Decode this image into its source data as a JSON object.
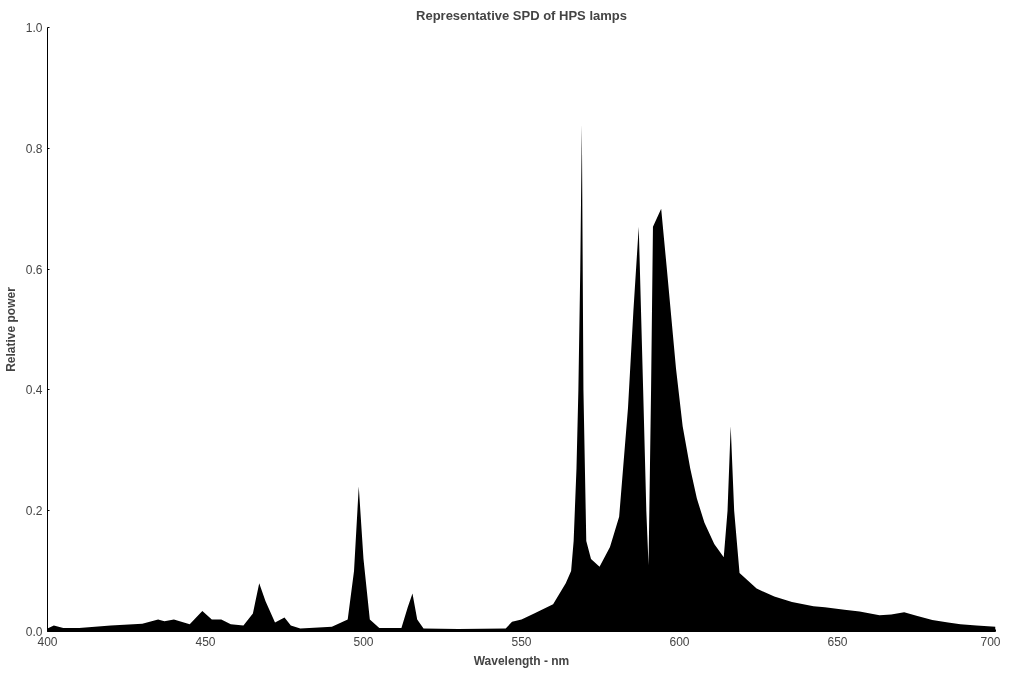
{
  "chart_data": {
    "type": "area",
    "title": "Representative SPD of HPS lamps",
    "xlabel": "Wavelength - nm",
    "ylabel": "Relative power",
    "x": [
      400,
      402,
      405,
      410,
      420,
      430,
      435,
      437,
      440,
      445,
      449,
      452,
      455,
      458,
      462,
      465,
      467,
      469,
      472,
      475,
      477,
      480,
      490,
      495,
      497,
      498.5,
      500,
      502,
      505,
      512,
      514,
      515.5,
      517,
      519,
      530,
      545,
      547,
      550,
      554,
      560,
      564,
      565.7,
      566.5,
      567.4,
      568,
      568.6,
      569.1,
      569.6,
      570.5,
      572,
      574.7,
      578,
      580.9,
      583.7,
      585.4,
      587.1,
      588.5,
      589.5,
      590.2,
      591,
      591.6,
      594.2,
      596,
      598.9,
      601,
      603.4,
      605.5,
      607.9,
      611,
      614,
      615.2,
      616.2,
      617.3,
      619,
      624.4,
      630,
      635.6,
      642.4,
      646,
      652.2,
      657,
      663.3,
      667,
      671.1,
      675,
      680,
      685,
      688.9,
      694,
      700
    ],
    "series": [
      {
        "color": "#000000",
        "values": [
          0.005,
          0.01,
          0.006,
          0.006,
          0.01,
          0.013,
          0.02,
          0.017,
          0.02,
          0.012,
          0.034,
          0.02,
          0.02,
          0.012,
          0.01,
          0.03,
          0.08,
          0.05,
          0.015,
          0.023,
          0.01,
          0.005,
          0.008,
          0.02,
          0.1,
          0.24,
          0.12,
          0.02,
          0.006,
          0.006,
          0.04,
          0.063,
          0.02,
          0.005,
          0.004,
          0.005,
          0.016,
          0.02,
          0.03,
          0.045,
          0.08,
          0.1,
          0.15,
          0.27,
          0.4,
          0.6,
          0.84,
          0.4,
          0.15,
          0.12,
          0.107,
          0.14,
          0.19,
          0.37,
          0.53,
          0.67,
          0.4,
          0.2,
          0.11,
          0.4,
          0.67,
          0.7,
          0.6,
          0.435,
          0.34,
          0.27,
          0.22,
          0.18,
          0.145,
          0.123,
          0.2,
          0.34,
          0.2,
          0.097,
          0.071,
          0.058,
          0.049,
          0.042,
          0.04,
          0.036,
          0.033,
          0.027,
          0.028,
          0.032,
          0.026,
          0.019,
          0.015,
          0.012,
          0.01,
          0.008
        ]
      }
    ],
    "xlim": [
      400,
      700
    ],
    "xticks": [
      400,
      450,
      500,
      550,
      600,
      650,
      700
    ],
    "ylim": [
      0,
      1
    ],
    "yticks": [
      {
        "value": 0,
        "label": "0.0"
      },
      {
        "value": 0.2,
        "label": "0.2"
      },
      {
        "value": 0.4,
        "label": "0.4"
      },
      {
        "value": 0.6,
        "label": "0.6"
      },
      {
        "value": 0.8,
        "label": "0.8"
      },
      {
        "value": 1,
        "label": "1.0"
      }
    ]
  }
}
